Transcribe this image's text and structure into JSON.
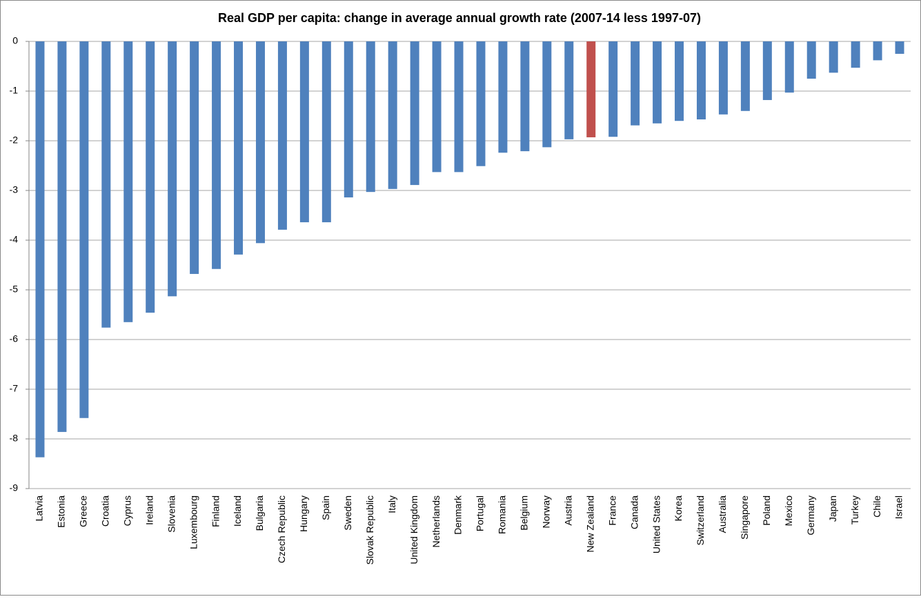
{
  "chart_data": {
    "type": "bar",
    "title": "Real GDP per capita: change in average annual growth rate (2007-14 less 1997-07)",
    "categories": [
      "Latvia",
      "Estonia",
      "Greece",
      "Croatia",
      "Cyprus",
      "Ireland",
      "Slovenia",
      "Luxembourg",
      "Finland",
      "Iceland",
      "Bulgaria",
      "Czech Republic",
      "Hungary",
      "Spain",
      "Sweden",
      "Slovak Republic",
      "Italy",
      "United Kingdom",
      "Netherlands",
      "Denmark",
      "Portugal",
      "Romania",
      "Belgium",
      "Norway",
      "Austria",
      "New Zealand",
      "France",
      "Canada",
      "United States",
      "Korea",
      "Switzerland",
      "Australia",
      "Singapore",
      "Poland",
      "Mexico",
      "Germany",
      "Japan",
      "Turkey",
      "Chile",
      "Israel"
    ],
    "values": [
      -8.37,
      -7.86,
      -7.58,
      -5.76,
      -5.65,
      -5.46,
      -5.13,
      -4.68,
      -4.58,
      -4.29,
      -4.06,
      -3.79,
      -3.64,
      -3.64,
      -3.14,
      -3.03,
      -2.97,
      -2.89,
      -2.63,
      -2.63,
      -2.51,
      -2.24,
      -2.21,
      -2.13,
      -1.97,
      -1.93,
      -1.92,
      -1.69,
      -1.65,
      -1.6,
      -1.57,
      -1.47,
      -1.4,
      -1.18,
      -1.03,
      -0.75,
      -0.63,
      -0.53,
      -0.38,
      -0.25
    ],
    "colors": [
      "#4f81bd",
      "#4f81bd",
      "#4f81bd",
      "#4f81bd",
      "#4f81bd",
      "#4f81bd",
      "#4f81bd",
      "#4f81bd",
      "#4f81bd",
      "#4f81bd",
      "#4f81bd",
      "#4f81bd",
      "#4f81bd",
      "#4f81bd",
      "#4f81bd",
      "#4f81bd",
      "#4f81bd",
      "#4f81bd",
      "#4f81bd",
      "#4f81bd",
      "#4f81bd",
      "#4f81bd",
      "#4f81bd",
      "#4f81bd",
      "#4f81bd",
      "#c0504d",
      "#4f81bd",
      "#4f81bd",
      "#4f81bd",
      "#4f81bd",
      "#4f81bd",
      "#4f81bd",
      "#4f81bd",
      "#4f81bd",
      "#4f81bd",
      "#4f81bd",
      "#4f81bd",
      "#4f81bd",
      "#4f81bd",
      "#4f81bd"
    ],
    "ylim": [
      -9,
      0
    ],
    "yticks": [
      0,
      -1,
      -2,
      -3,
      -4,
      -5,
      -6,
      -7,
      -8,
      -9
    ],
    "grid": true
  }
}
